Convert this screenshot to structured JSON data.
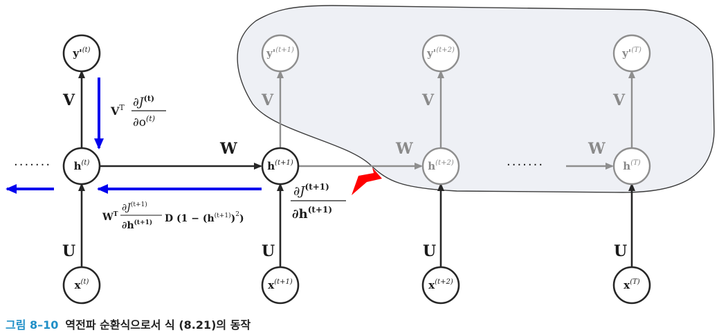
{
  "nodes": {
    "y_t": {
      "base": "y'",
      "sup": "(t)"
    },
    "y_t1": {
      "base": "y'",
      "sup": "(t+1)"
    },
    "y_t2": {
      "base": "y'",
      "sup": "(t+2)"
    },
    "y_T": {
      "base": "y'",
      "sup": "(T)"
    },
    "h_t": {
      "base": "h",
      "sup": "(t)"
    },
    "h_t1": {
      "base": "h",
      "sup": "(t+1)"
    },
    "h_t2": {
      "base": "h",
      "sup": "(t+2)"
    },
    "h_T": {
      "base": "h",
      "sup": "(T)"
    },
    "x_t": {
      "base": "x",
      "sup": "(t)"
    },
    "x_t1": {
      "base": "x",
      "sup": "(t+1)"
    },
    "x_t2": {
      "base": "x",
      "sup": "(t+2)"
    },
    "x_T": {
      "base": "x",
      "sup": "(T)"
    }
  },
  "weights": {
    "V": "V",
    "W": "W",
    "U": "U"
  },
  "ellipsis": "·······",
  "formulas": {
    "vt_grad": {
      "factor": "V",
      "factor_sup": "T",
      "num": "∂J",
      "num_sup": "(t)",
      "den": "∂o",
      "den_sup": "(t)"
    },
    "wt_grad": {
      "factor": "W",
      "factor_sup": "T",
      "num": "∂J",
      "num_sup": "(t+1)",
      "den": "∂h",
      "den_sup": "(t+1)",
      "tail": "D (1 − (h",
      "tail_sup": "(t+1)",
      "tail_end": ")",
      "tail_end_sup": "2",
      "tail_close": ")"
    },
    "future_grad": {
      "num": "∂J",
      "num_sup": "(t+1)",
      "den": "∂h",
      "den_sup": "(t+1)"
    }
  },
  "caption": {
    "number": "그림 8–10",
    "text": "역전파 순환식으로서 식 (8.21)의 동작"
  },
  "colors": {
    "blue": "#0000ee",
    "red": "#ff0000",
    "dark": "#262626",
    "gray": "#8e8e8e",
    "region_fill": "#eef0f5"
  }
}
